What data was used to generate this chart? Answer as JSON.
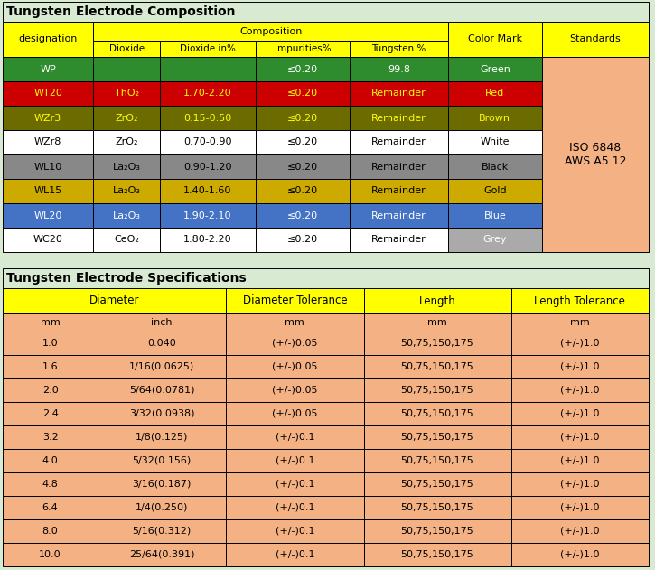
{
  "bg_color": "#d9ead3",
  "table1_title": "Tungsten Electrode Composition",
  "table2_title": "Tungsten Electrode Specifications",
  "comp_rows": [
    [
      "WP",
      "",
      "",
      "≤0.20",
      "99.8",
      "Green"
    ],
    [
      "WT20",
      "ThO₂",
      "1.70-2.20",
      "≤0.20",
      "Remainder",
      "Red"
    ],
    [
      "WZr3",
      "ZrO₂",
      "0.15-0.50",
      "≤0.20",
      "Remainder",
      "Brown"
    ],
    [
      "WZr8",
      "ZrO₂",
      "0.70-0.90",
      "≤0.20",
      "Remainder",
      "White"
    ],
    [
      "WL10",
      "La₂O₃",
      "0.90-1.20",
      "≤0.20",
      "Remainder",
      "Black"
    ],
    [
      "WL15",
      "La₂O₃",
      "1.40-1.60",
      "≤0.20",
      "Remainder",
      "Gold"
    ],
    [
      "WL20",
      "La₂O₃",
      "1.90-2.10",
      "≤0.20",
      "Remainder",
      "Blue"
    ],
    [
      "WC20",
      "CeO₂",
      "1.80-2.20",
      "≤0.20",
      "Remainder",
      "Grey"
    ]
  ],
  "row_bg": [
    "#2e8b2e",
    "#cc0000",
    "#6b6b00",
    "#ffffff",
    "#888888",
    "#ccaa00",
    "#4472c4",
    "#ffffff"
  ],
  "row_fg": [
    "#ffffff",
    "#ffff00",
    "#ffff00",
    "#000000",
    "#000000",
    "#000000",
    "#ffffff",
    "#000000"
  ],
  "color_mark_bg": [
    "#2e8b2e",
    "#cc0000",
    "#6b6b00",
    "#ffffff",
    "#888888",
    "#ccaa00",
    "#4472c4",
    "#aaaaaa"
  ],
  "color_mark_fg": [
    "#ffffff",
    "#ffff00",
    "#ffff00",
    "#000000",
    "#000000",
    "#000000",
    "#ffffff",
    "#ffffff"
  ],
  "spec_rows": [
    [
      "1.0",
      "0.040",
      "(+/-)0.05",
      "50,75,150,175",
      "(+/-)1.0"
    ],
    [
      "1.6",
      "1/16(0.0625)",
      "(+/-)0.05",
      "50,75,150,175",
      "(+/-)1.0"
    ],
    [
      "2.0",
      "5/64(0.0781)",
      "(+/-)0.05",
      "50,75,150,175",
      "(+/-)1.0"
    ],
    [
      "2.4",
      "3/32(0.0938)",
      "(+/-)0.05",
      "50,75,150,175",
      "(+/-)1.0"
    ],
    [
      "3.2",
      "1/8(0.125)",
      "(+/-)0.1",
      "50,75,150,175",
      "(+/-)1.0"
    ],
    [
      "4.0",
      "5/32(0.156)",
      "(+/-)0.1",
      "50,75,150,175",
      "(+/-)1.0"
    ],
    [
      "4.8",
      "3/16(0.187)",
      "(+/-)0.1",
      "50,75,150,175",
      "(+/-)1.0"
    ],
    [
      "6.4",
      "1/4(0.250)",
      "(+/-)0.1",
      "50,75,150,175",
      "(+/-)1.0"
    ],
    [
      "8.0",
      "5/16(0.312)",
      "(+/-)0.1",
      "50,75,150,175",
      "(+/-)1.0"
    ],
    [
      "10.0",
      "25/64(0.391)",
      "(+/-)0.1",
      "50,75,150,175",
      "(+/-)1.0"
    ]
  ],
  "yellow": "#ffff00",
  "light_orange": "#f4b183",
  "white": "#ffffff",
  "black": "#000000",
  "standards_bg": "#f4b183",
  "standards_text": "ISO 6848\nAWS A5.12"
}
